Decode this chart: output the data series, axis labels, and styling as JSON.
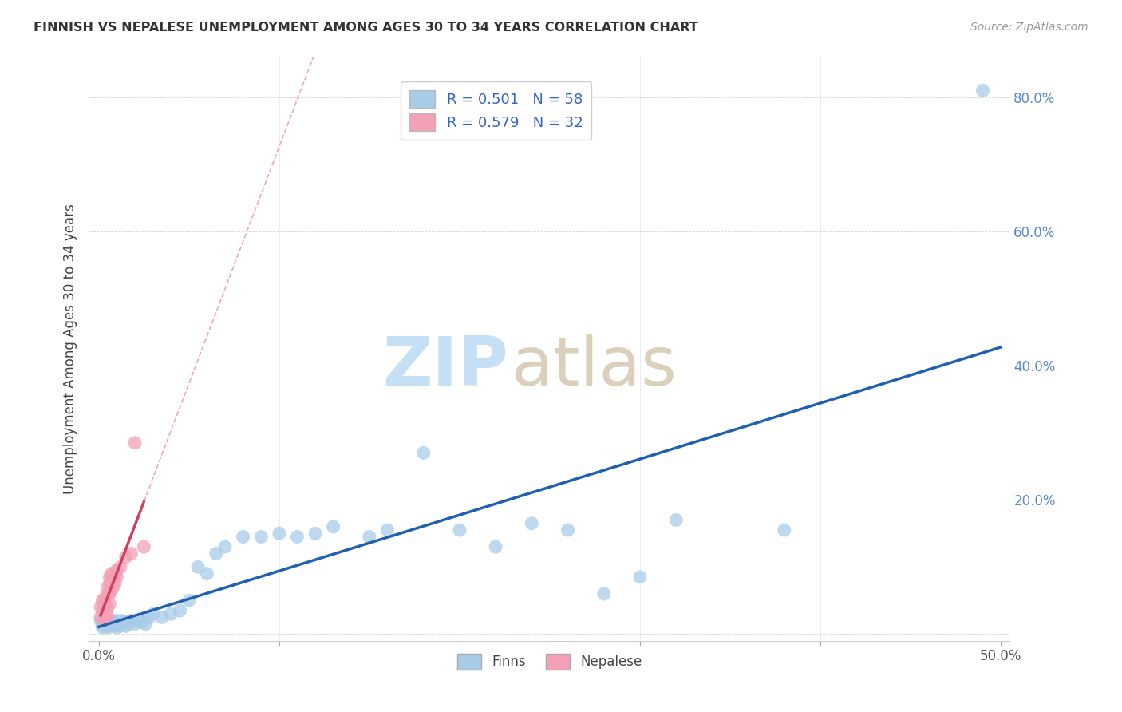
{
  "title": "FINNISH VS NEPALESE UNEMPLOYMENT AMONG AGES 30 TO 34 YEARS CORRELATION CHART",
  "source": "Source: ZipAtlas.com",
  "ylabel": "Unemployment Among Ages 30 to 34 years",
  "xlim": [
    -0.005,
    0.505
  ],
  "ylim": [
    -0.01,
    0.86
  ],
  "legend_r_finns": "R = 0.501",
  "legend_n_finns": "N = 58",
  "legend_r_nepalese": "R = 0.579",
  "legend_n_nepalese": "N = 32",
  "finns_color": "#a8cce8",
  "nepalese_color": "#f4a0b5",
  "finns_line_color": "#2060b0",
  "nepalese_line_color": "#d04060",
  "nepalese_dash_color": "#e08898",
  "watermark_zip_color": "#c5dff5",
  "watermark_atlas_color": "#d4c8b0",
  "finns_x": [
    0.001,
    0.002,
    0.002,
    0.003,
    0.003,
    0.004,
    0.004,
    0.005,
    0.005,
    0.006,
    0.006,
    0.007,
    0.007,
    0.008,
    0.008,
    0.009,
    0.01,
    0.01,
    0.011,
    0.012,
    0.013,
    0.014,
    0.015,
    0.016,
    0.017,
    0.018,
    0.02,
    0.022,
    0.024,
    0.026,
    0.028,
    0.03,
    0.035,
    0.04,
    0.045,
    0.05,
    0.055,
    0.06,
    0.065,
    0.07,
    0.08,
    0.09,
    0.1,
    0.11,
    0.12,
    0.13,
    0.15,
    0.16,
    0.18,
    0.2,
    0.22,
    0.24,
    0.26,
    0.28,
    0.3,
    0.32,
    0.38,
    0.49
  ],
  "finns_y": [
    0.02,
    0.01,
    0.015,
    0.012,
    0.018,
    0.015,
    0.02,
    0.01,
    0.015,
    0.012,
    0.018,
    0.015,
    0.02,
    0.012,
    0.018,
    0.015,
    0.01,
    0.02,
    0.015,
    0.012,
    0.02,
    0.018,
    0.012,
    0.015,
    0.018,
    0.02,
    0.015,
    0.02,
    0.018,
    0.015,
    0.025,
    0.03,
    0.025,
    0.03,
    0.035,
    0.05,
    0.1,
    0.09,
    0.12,
    0.13,
    0.145,
    0.145,
    0.15,
    0.145,
    0.15,
    0.16,
    0.145,
    0.155,
    0.27,
    0.155,
    0.13,
    0.165,
    0.155,
    0.06,
    0.085,
    0.17,
    0.155,
    0.81
  ],
  "nepalese_x": [
    0.001,
    0.001,
    0.002,
    0.002,
    0.003,
    0.003,
    0.003,
    0.004,
    0.004,
    0.004,
    0.005,
    0.005,
    0.005,
    0.005,
    0.006,
    0.006,
    0.006,
    0.006,
    0.007,
    0.007,
    0.007,
    0.008,
    0.008,
    0.009,
    0.009,
    0.01,
    0.01,
    0.012,
    0.015,
    0.018,
    0.02,
    0.025
  ],
  "nepalese_y": [
    0.025,
    0.04,
    0.035,
    0.05,
    0.02,
    0.035,
    0.05,
    0.03,
    0.045,
    0.055,
    0.025,
    0.04,
    0.06,
    0.07,
    0.045,
    0.06,
    0.075,
    0.085,
    0.065,
    0.08,
    0.09,
    0.07,
    0.085,
    0.075,
    0.09,
    0.085,
    0.095,
    0.1,
    0.115,
    0.12,
    0.285,
    0.13
  ]
}
